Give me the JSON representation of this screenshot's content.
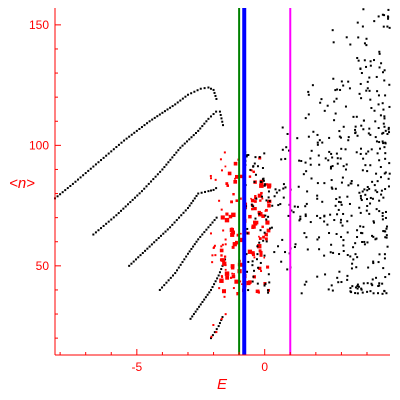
{
  "chart_data": {
    "type": "scatter",
    "title": "",
    "xlabel": "E",
    "ylabel": "<n>",
    "xlim": [
      -8.2,
      4.9
    ],
    "ylim": [
      13,
      157
    ],
    "x_ticks": [
      -5,
      0
    ],
    "y_ticks": [
      50,
      100,
      150
    ],
    "grid": false,
    "colors": {
      "axis": "#ff0000",
      "regular_points": "#000000",
      "chaotic_points": "#ff0000",
      "green_line": "#008000",
      "blue_line": "#0000ff",
      "magenta_line": "#ff00ff"
    },
    "vertical_lines": [
      {
        "x": -1.0,
        "color": "#008000"
      },
      {
        "x": -0.8,
        "color": "#0000ff"
      },
      {
        "x": 1.0,
        "color": "#ff00ff"
      }
    ],
    "regular_branches": [
      {
        "points": [
          [
            -8.2,
            78
          ],
          [
            -7.5,
            84
          ],
          [
            -6.5,
            93
          ],
          [
            -5.5,
            102
          ],
          [
            -4.5,
            110
          ],
          [
            -3.5,
            117
          ],
          [
            -3.0,
            121
          ],
          [
            -2.5,
            123.5
          ],
          [
            -2.2,
            124
          ],
          [
            -2.0,
            123
          ],
          [
            -1.85,
            118
          ]
        ]
      },
      {
        "points": [
          [
            -6.7,
            63
          ],
          [
            -5.8,
            71
          ],
          [
            -4.8,
            81
          ],
          [
            -4.0,
            90
          ],
          [
            -3.3,
            99
          ],
          [
            -2.6,
            106
          ],
          [
            -2.2,
            111
          ],
          [
            -1.9,
            114
          ],
          [
            -1.75,
            114
          ],
          [
            -1.6,
            107
          ]
        ]
      },
      {
        "points": [
          [
            -5.3,
            50
          ],
          [
            -4.5,
            58
          ],
          [
            -3.7,
            66
          ],
          [
            -3.0,
            74
          ],
          [
            -2.6,
            80
          ],
          [
            -2.2,
            81
          ],
          [
            -2.0,
            81.5
          ],
          [
            -1.8,
            83
          ]
        ]
      },
      {
        "points": [
          [
            -4.1,
            40
          ],
          [
            -3.5,
            47
          ],
          [
            -3.0,
            55
          ],
          [
            -2.6,
            61
          ],
          [
            -2.2,
            66
          ],
          [
            -1.8,
            71
          ]
        ]
      },
      {
        "points": [
          [
            -2.9,
            28
          ],
          [
            -2.5,
            34
          ],
          [
            -2.1,
            40
          ],
          [
            -1.8,
            46
          ],
          [
            -1.5,
            54
          ]
        ]
      },
      {
        "points": [
          [
            -2.1,
            20
          ],
          [
            -1.8,
            25
          ],
          [
            -1.6,
            30
          ]
        ]
      }
    ],
    "chaotic_region": {
      "x_range": [
        -1.7,
        0.2
      ],
      "y_range": [
        38,
        95
      ],
      "count": 140
    },
    "scatter_region": {
      "x_range": [
        0,
        4.9
      ],
      "y_range": [
        38,
        157
      ],
      "count": 420
    }
  }
}
